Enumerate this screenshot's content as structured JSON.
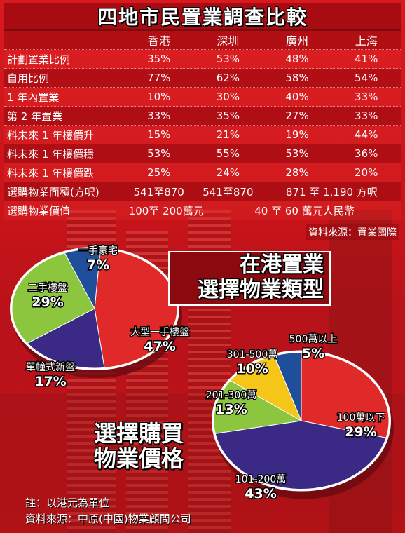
{
  "title": "四地市民置業調查比較",
  "table": {
    "columns": [
      "香港",
      "深圳",
      "廣州",
      "上海"
    ],
    "rows": [
      {
        "label": "計劃置業比例",
        "values": [
          "35%",
          "53%",
          "48%",
          "41%"
        ]
      },
      {
        "label": "自用比例",
        "values": [
          "77%",
          "62%",
          "58%",
          "54%"
        ]
      },
      {
        "label": "1 年內置業",
        "values": [
          "10%",
          "30%",
          "40%",
          "33%"
        ]
      },
      {
        "label": "第 2 年置業",
        "values": [
          "33%",
          "35%",
          "27%",
          "33%"
        ]
      },
      {
        "label": "料未來 1 年樓價升",
        "values": [
          "15%",
          "21%",
          "19%",
          "44%"
        ]
      },
      {
        "label": "料未來 1 年樓價穩",
        "values": [
          "53%",
          "55%",
          "53%",
          "36%"
        ]
      },
      {
        "label": "料未來 1 年樓價跌",
        "values": [
          "25%",
          "24%",
          "28%",
          "20%"
        ]
      },
      {
        "label": "選購物業面積(方呎)",
        "values": [
          "541至870",
          "541至870",
          "871 至 1,190 方呎"
        ]
      },
      {
        "label": "選購物業價值",
        "values": [
          "100至 200萬元",
          "40 至 60 萬元人民幣"
        ]
      }
    ],
    "source": "資料來源：置業國際"
  },
  "colors": {
    "background": "#c8141a",
    "red_slice": "#e02a2a",
    "green_slice": "#8cc63f",
    "purple_slice": "#3a2a86",
    "blue_slice": "#1f4e9a",
    "yellow_slice": "#f5c518"
  },
  "chart_data": [
    {
      "type": "pie",
      "title": "在港置業選擇物業類型",
      "title_lines": [
        "在港置業",
        "選擇物業類型"
      ],
      "categories": [
        "大型一手樓盤",
        "單幢式新盤",
        "二手樓盤",
        "一手豪宅"
      ],
      "values": [
        47,
        17,
        29,
        7
      ],
      "labels": [
        "47%",
        "17%",
        "29%",
        "7%"
      ],
      "colors": [
        "#e02a2a",
        "#3a2a86",
        "#8cc63f",
        "#1f4e9a"
      ]
    },
    {
      "type": "pie",
      "title": "選擇購買物業價格",
      "title_lines": [
        "選擇購買",
        "物業價格"
      ],
      "categories": [
        "100萬以下",
        "101-200萬",
        "201-300萬",
        "301-500萬",
        "500萬以上"
      ],
      "values": [
        29,
        43,
        13,
        10,
        5
      ],
      "labels": [
        "29%",
        "43%",
        "13%",
        "10%",
        "5%"
      ],
      "colors": [
        "#e02a2a",
        "#3a2a86",
        "#8cc63f",
        "#f5c518",
        "#1f4e9a"
      ]
    }
  ],
  "notes": [
    "註：以港元為單位",
    "資料來源：中原(中國)物業顧問公司"
  ]
}
